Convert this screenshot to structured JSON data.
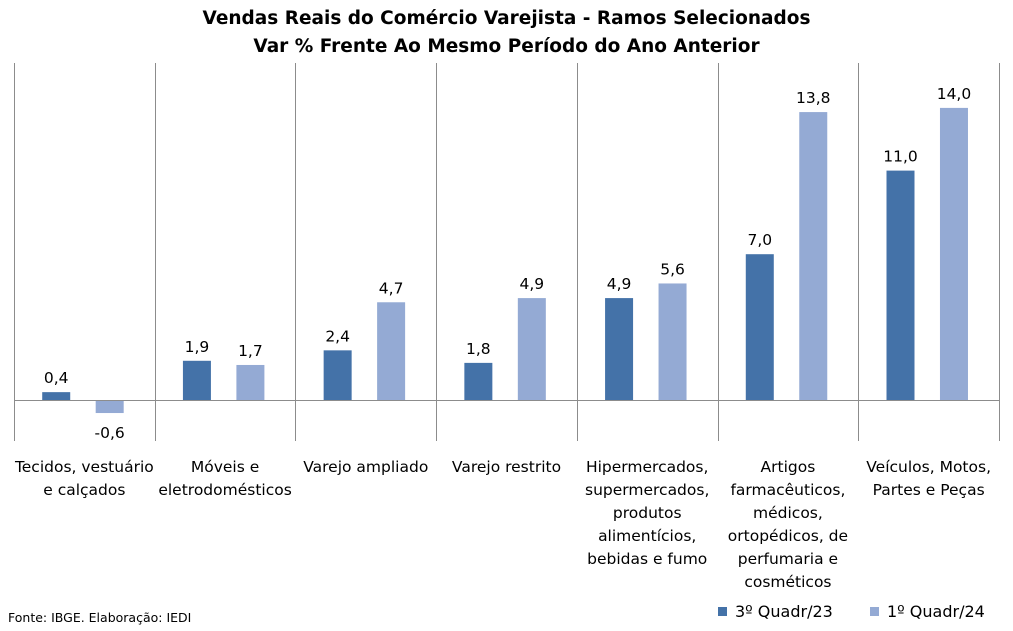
{
  "source": "Fonte: IBGE. Elaboração: IEDI",
  "chart_data": {
    "type": "bar",
    "title": "Vendas Reais do Comércio Varejista - Ramos Selecionados",
    "subtitle": "Var % Frente Ao Mesmo Período do Ano Anterior",
    "xlabel": "",
    "ylabel": "",
    "categories": [
      "Tecidos, vestuário\ne calçados",
      "Móveis e\neletrodomésticos",
      "Varejo ampliado",
      "Varejo restrito",
      "Hipermercados,\nsupermercados,\nprodutos\nalimentícios,\nbebidas e fumo",
      "Artigos\nfarmacêuticos,\nmédicos,\nortopédicos, de\nperfumaria e\ncosméticos",
      "Veículos, Motos,\nPartes e Peças"
    ],
    "series": [
      {
        "name": "3º Quadr/23",
        "color": "#4472a8",
        "values": [
          0.4,
          1.9,
          2.4,
          1.8,
          4.9,
          7.0,
          11.0
        ],
        "labels": [
          "0,4",
          "1,9",
          "2,4",
          "1,8",
          "4,9",
          "7,0",
          "11,0"
        ]
      },
      {
        "name": "1º Quadr/24",
        "color": "#94aad4",
        "values": [
          -0.6,
          1.7,
          4.7,
          4.9,
          5.6,
          13.8,
          14.0
        ],
        "labels": [
          "-0,6",
          "1,7",
          "4,7",
          "4,9",
          "5,6",
          "13,8",
          "14,0"
        ]
      }
    ],
    "ylim": [
      -3.0,
      17.5
    ],
    "grid": false,
    "legend_position": "bottom-right"
  }
}
